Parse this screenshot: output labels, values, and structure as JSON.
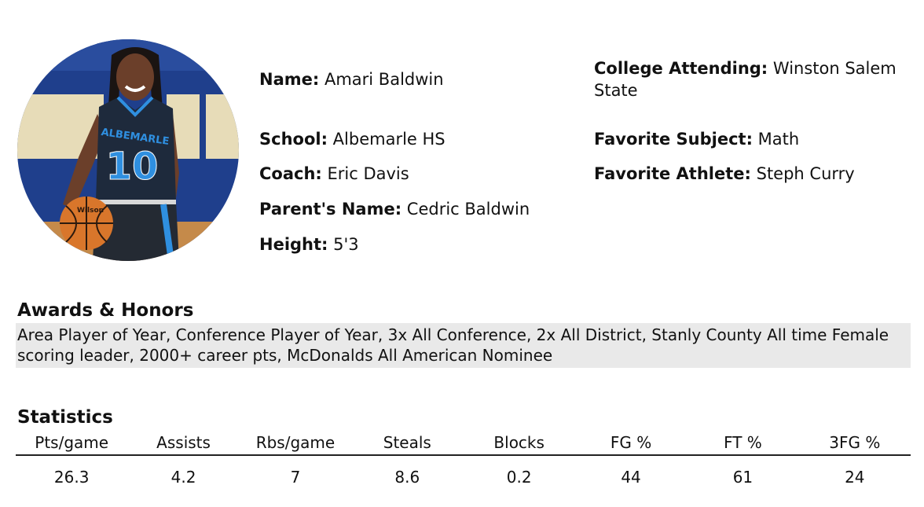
{
  "profile": {
    "name": {
      "label": "Name:",
      "value": "Amari Baldwin"
    },
    "school": {
      "label": "School:",
      "value": "Albemarle HS"
    },
    "coach": {
      "label": "Coach:",
      "value": "Eric Davis"
    },
    "parent": {
      "label": "Parent's Name:",
      "value": "Cedric Baldwin"
    },
    "height": {
      "label": "Height:",
      "value": "5'3"
    },
    "college": {
      "label": "College Attending:",
      "value": "Winston Salem State"
    },
    "subject": {
      "label": "Favorite Subject:",
      "value": "Math"
    },
    "athlete": {
      "label": "Favorite Athlete:",
      "value": "Steph Curry"
    }
  },
  "photo": {
    "jersey_text": "ALBEMARLE",
    "jersey_number": "10",
    "ball_text": "Wilson",
    "colors": {
      "jersey": "#1e2a3c",
      "accent": "#2f8fe0",
      "wall": "#1f3f8c",
      "ball": "#d9762b"
    }
  },
  "awards": {
    "title": "Awards & Honors",
    "text": "Area Player of Year, Conference Player of Year, 3x All Conference, 2x All District, Stanly County All time Female scoring leader, 2000+ career pts, McDonalds All American Nominee"
  },
  "statistics": {
    "title": "Statistics",
    "headers": [
      "Pts/game",
      "Assists",
      "Rbs/game",
      "Steals",
      "Blocks",
      "FG %",
      "FT %",
      "3FG %"
    ],
    "values": [
      "26.3",
      "4.2",
      "7",
      "8.6",
      "0.2",
      "44",
      "61",
      "24"
    ]
  }
}
